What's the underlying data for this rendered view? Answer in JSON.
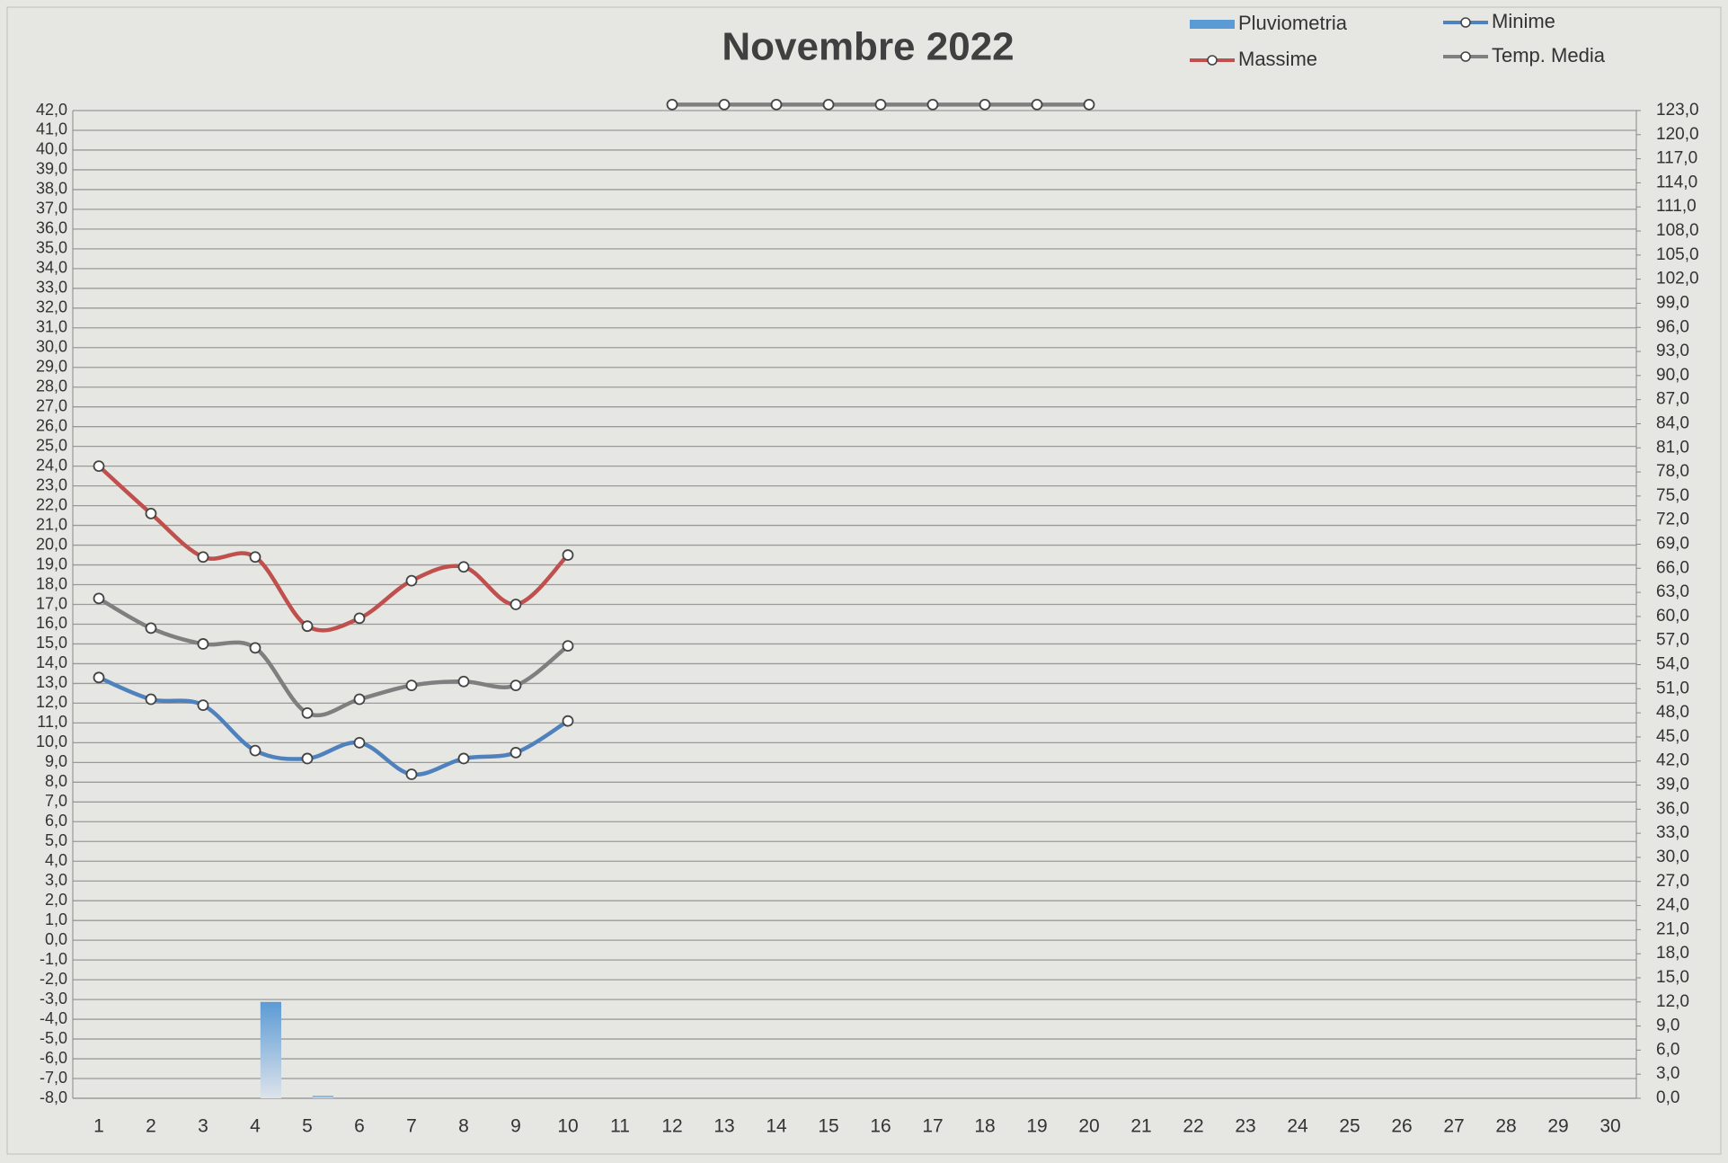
{
  "chart_data": {
    "type": "line",
    "title": "Novembre 2022",
    "categories": [
      "1",
      "2",
      "3",
      "4",
      "5",
      "6",
      "7",
      "8",
      "9",
      "10",
      "11",
      "12",
      "13",
      "14",
      "15",
      "16",
      "17",
      "18",
      "19",
      "20",
      "21",
      "22",
      "23",
      "24",
      "25",
      "26",
      "27",
      "28",
      "29",
      "30"
    ],
    "series": [
      {
        "name": "Pluviometria",
        "type": "bar",
        "axis": "y2",
        "color": "#5b9bd5",
        "values": [
          0,
          0,
          0,
          12.0,
          0.3,
          0,
          0,
          0,
          0,
          0,
          null,
          null,
          null,
          null,
          null,
          null,
          null,
          null,
          null,
          null,
          null,
          null,
          null,
          null,
          null,
          null,
          null,
          null,
          null,
          null
        ]
      },
      {
        "name": "Minime",
        "color": "#4f81bd",
        "values": [
          13.3,
          12.2,
          11.9,
          9.6,
          9.2,
          10.0,
          8.4,
          9.2,
          9.5,
          11.1,
          null,
          null,
          null,
          null,
          null,
          null,
          null,
          null,
          null,
          null,
          null,
          null,
          null,
          null,
          null,
          null,
          null,
          null,
          null,
          null
        ]
      },
      {
        "name": "Massime",
        "color": "#c0504d",
        "values": [
          24.0,
          21.6,
          19.4,
          19.4,
          15.9,
          16.3,
          18.2,
          18.9,
          17.0,
          19.5,
          null,
          null,
          null,
          null,
          null,
          null,
          null,
          null,
          null,
          null,
          null,
          null,
          null,
          null,
          null,
          null,
          null,
          null,
          null,
          null
        ]
      },
      {
        "name": "Temp. Media",
        "color": "#7f7f7f",
        "values": [
          17.3,
          15.8,
          15.0,
          14.8,
          11.5,
          12.2,
          12.9,
          13.1,
          12.9,
          14.9,
          null,
          42.3,
          42.3,
          42.3,
          42.3,
          42.3,
          42.3,
          42.3,
          42.3,
          42.3,
          null,
          null,
          null,
          null,
          null,
          null,
          null,
          null,
          null,
          null
        ]
      }
    ],
    "ylim": [
      -8,
      42
    ],
    "yticks": [
      {
        "value": -8,
        "label": "-8,0"
      },
      {
        "value": -7,
        "label": "-7,0"
      },
      {
        "value": -6,
        "label": "-6,0"
      },
      {
        "value": -5,
        "label": "-5,0"
      },
      {
        "value": -4,
        "label": "-4,0"
      },
      {
        "value": -3,
        "label": "-3,0"
      },
      {
        "value": -2,
        "label": "-2,0"
      },
      {
        "value": -1,
        "label": "-1,0"
      },
      {
        "value": 0,
        "label": "0,0"
      },
      {
        "value": 1,
        "label": "1,0"
      },
      {
        "value": 2,
        "label": "2,0"
      },
      {
        "value": 3,
        "label": "3,0"
      },
      {
        "value": 4,
        "label": "4,0"
      },
      {
        "value": 5,
        "label": "5,0"
      },
      {
        "value": 6,
        "label": "6,0"
      },
      {
        "value": 7,
        "label": "7,0"
      },
      {
        "value": 8,
        "label": "8,0"
      },
      {
        "value": 9,
        "label": "9,0"
      },
      {
        "value": 10,
        "label": "10,0"
      },
      {
        "value": 11,
        "label": "11,0"
      },
      {
        "value": 12,
        "label": "12,0"
      },
      {
        "value": 13,
        "label": "13,0"
      },
      {
        "value": 14,
        "label": "14,0"
      },
      {
        "value": 15,
        "label": "15,0"
      },
      {
        "value": 16,
        "label": "16,0"
      },
      {
        "value": 17,
        "label": "17,0"
      },
      {
        "value": 18,
        "label": "18,0"
      },
      {
        "value": 19,
        "label": "19,0"
      },
      {
        "value": 20,
        "label": "20,0"
      },
      {
        "value": 21,
        "label": "21,0"
      },
      {
        "value": 22,
        "label": "22,0"
      },
      {
        "value": 23,
        "label": "23,0"
      },
      {
        "value": 24,
        "label": "24,0"
      },
      {
        "value": 25,
        "label": "25,0"
      },
      {
        "value": 26,
        "label": "26,0"
      },
      {
        "value": 27,
        "label": "27,0"
      },
      {
        "value": 28,
        "label": "28,0"
      },
      {
        "value": 29,
        "label": "29,0"
      },
      {
        "value": 30,
        "label": "30,0"
      },
      {
        "value": 31,
        "label": "31,0"
      },
      {
        "value": 32,
        "label": "32,0"
      },
      {
        "value": 33,
        "label": "33,0"
      },
      {
        "value": 34,
        "label": "34,0"
      },
      {
        "value": 35,
        "label": "35,0"
      },
      {
        "value": 36,
        "label": "36,0"
      },
      {
        "value": 37,
        "label": "37,0"
      },
      {
        "value": 38,
        "label": "38,0"
      },
      {
        "value": 39,
        "label": "39,0"
      },
      {
        "value": 40,
        "label": "40,0"
      },
      {
        "value": 41,
        "label": "41,0"
      },
      {
        "value": 42,
        "label": "42,0"
      }
    ],
    "y2lim": [
      0,
      123
    ],
    "y2ticks": [
      {
        "value": 0,
        "label": "0,0"
      },
      {
        "value": 3,
        "label": "3,0"
      },
      {
        "value": 6,
        "label": "6,0"
      },
      {
        "value": 9,
        "label": "9,0"
      },
      {
        "value": 12,
        "label": "12,0"
      },
      {
        "value": 15,
        "label": "15,0"
      },
      {
        "value": 18,
        "label": "18,0"
      },
      {
        "value": 21,
        "label": "21,0"
      },
      {
        "value": 24,
        "label": "24,0"
      },
      {
        "value": 27,
        "label": "27,0"
      },
      {
        "value": 30,
        "label": "30,0"
      },
      {
        "value": 33,
        "label": "33,0"
      },
      {
        "value": 36,
        "label": "36,0"
      },
      {
        "value": 39,
        "label": "39,0"
      },
      {
        "value": 42,
        "label": "42,0"
      },
      {
        "value": 45,
        "label": "45,0"
      },
      {
        "value": 48,
        "label": "48,0"
      },
      {
        "value": 51,
        "label": "51,0"
      },
      {
        "value": 54,
        "label": "54,0"
      },
      {
        "value": 57,
        "label": "57,0"
      },
      {
        "value": 60,
        "label": "60,0"
      },
      {
        "value": 63,
        "label": "63,0"
      },
      {
        "value": 66,
        "label": "66,0"
      },
      {
        "value": 69,
        "label": "69,0"
      },
      {
        "value": 72,
        "label": "72,0"
      },
      {
        "value": 75,
        "label": "75,0"
      },
      {
        "value": 78,
        "label": "78,0"
      },
      {
        "value": 81,
        "label": "81,0"
      },
      {
        "value": 84,
        "label": "84,0"
      },
      {
        "value": 87,
        "label": "87,0"
      },
      {
        "value": 90,
        "label": "90,0"
      },
      {
        "value": 93,
        "label": "93,0"
      },
      {
        "value": 96,
        "label": "96,0"
      },
      {
        "value": 99,
        "label": "99,0"
      },
      {
        "value": 102,
        "label": "102,0"
      },
      {
        "value": 105,
        "label": "105,0"
      },
      {
        "value": 108,
        "label": "108,0"
      },
      {
        "value": 111,
        "label": "111,0"
      },
      {
        "value": 114,
        "label": "114,0"
      },
      {
        "value": 117,
        "label": "117,0"
      },
      {
        "value": 120,
        "label": "120,0"
      },
      {
        "value": 123,
        "label": "123,0"
      }
    ],
    "grid": true,
    "legend": "top-right"
  }
}
